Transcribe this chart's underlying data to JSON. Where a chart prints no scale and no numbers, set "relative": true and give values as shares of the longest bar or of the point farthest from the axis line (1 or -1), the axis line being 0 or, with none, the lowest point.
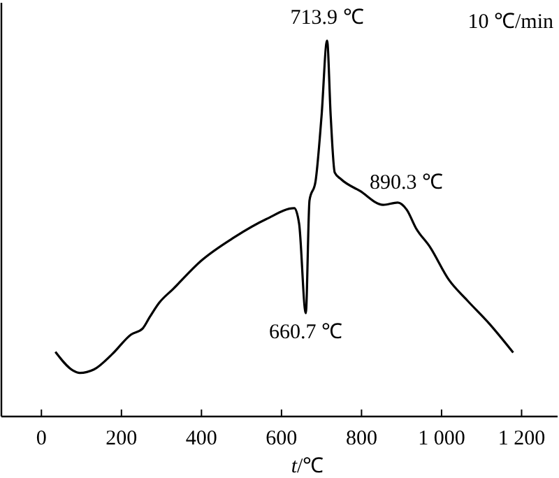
{
  "chart_data": {
    "type": "line",
    "relative": true,
    "xlabel": "t/℃",
    "xlim": [
      -100,
      1290
    ],
    "xticks": [
      0,
      200,
      400,
      600,
      800,
      {
        "value": 1000,
        "label": "1 000"
      },
      {
        "value": 1200,
        "label": "1 200"
      }
    ],
    "series": [
      {
        "color": "#000000",
        "x": [
          35,
          78,
          96,
          131,
          177,
          224,
          253,
          271,
          294,
          329,
          399,
          481,
          562,
          632,
          644,
          660.7,
          670,
          685,
          700,
          713.9,
          723,
          733,
          749,
          796,
          854,
          890.3,
          913,
          936,
          971,
          1018,
          1064,
          1120,
          1179
        ],
        "values": [
          0.172,
          0.123,
          0.116,
          0.125,
          0.166,
          0.218,
          0.234,
          0.265,
          0.302,
          0.339,
          0.414,
          0.476,
          0.525,
          0.554,
          0.513,
          0.275,
          0.575,
          0.625,
          0.798,
          1.0,
          0.798,
          0.649,
          0.631,
          0.6,
          0.563,
          0.569,
          0.55,
          0.501,
          0.451,
          0.364,
          0.309,
          0.246,
          0.17
        ]
      }
    ],
    "annotations": [
      "10 ℃/min",
      {
        "text": "713.9 ℃",
        "x": 713.9,
        "y": 1.0
      },
      {
        "text": "660.7 ℃",
        "x": 660.7,
        "y": 0.275
      },
      {
        "text": "890.3 ℃",
        "x": 890.3,
        "y": 0.569
      }
    ],
    "grid": false,
    "marker": "none",
    "line_style": "solid"
  }
}
